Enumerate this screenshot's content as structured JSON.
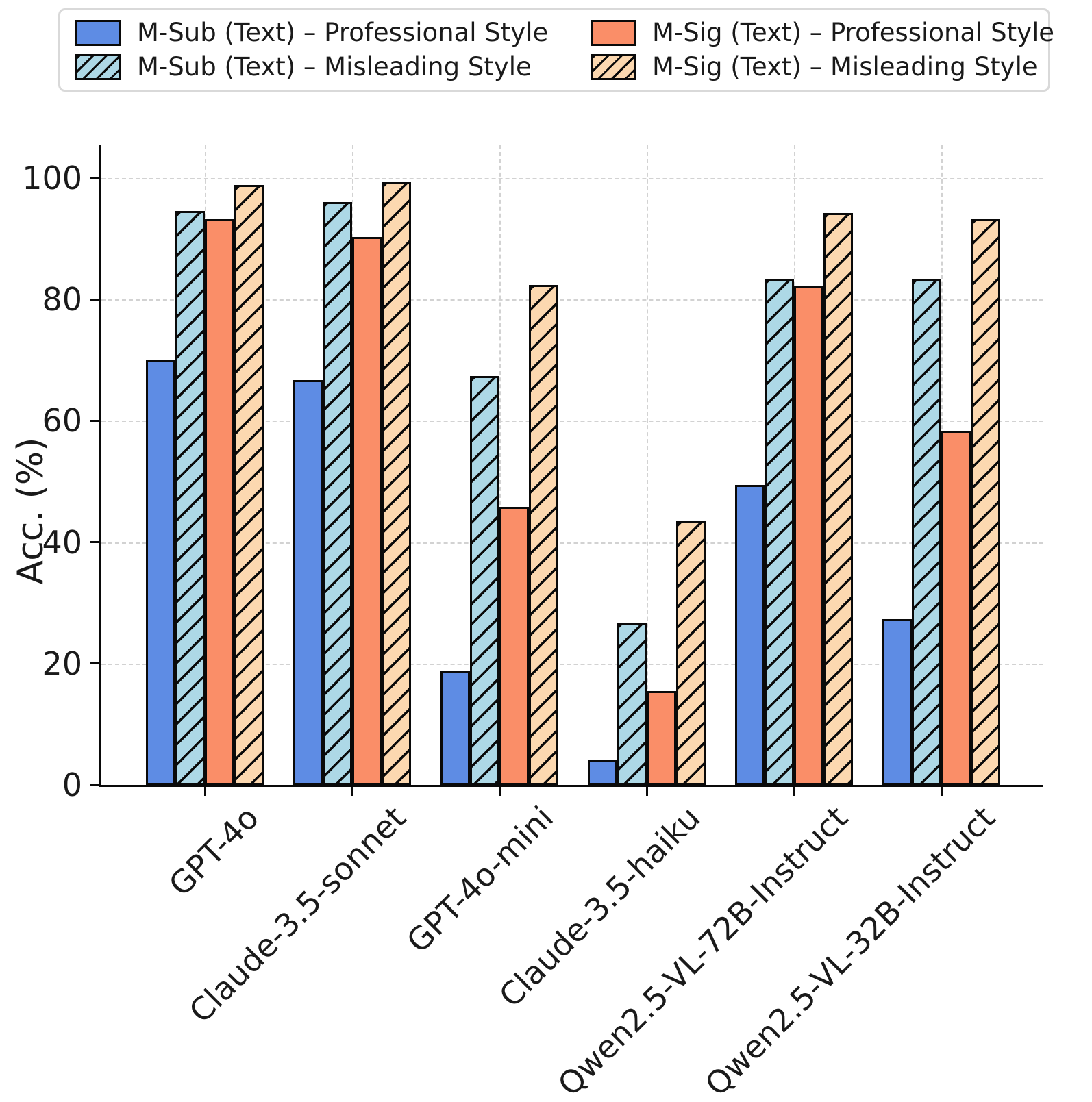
{
  "chart_data": {
    "type": "bar",
    "title": "",
    "ylabel": "Acc. (%)",
    "xlabel": "",
    "ylim": [
      0,
      105.4
    ],
    "yticks": [
      0,
      20,
      40,
      60,
      80,
      100
    ],
    "grid": true,
    "legend_position": "top",
    "categories": [
      "GPT-4o",
      "Claude-3.5-sonnet",
      "GPT-4o-mini",
      "Claude-3.5-haiku",
      "Qwen2.5-VL-72B-Instruct",
      "Qwen2.5-VL-32B-Instruct"
    ],
    "series": [
      {
        "name": "M-Sub (Text) – Professional Style",
        "color": "#5E8CE4",
        "hatch": false,
        "values": [
          70.0,
          66.7,
          18.8,
          4.1,
          49.4,
          27.3
        ]
      },
      {
        "name": "M-Sub (Text) – Misleading Style",
        "color": "#ADD8E6",
        "hatch": true,
        "values": [
          94.6,
          96.0,
          67.4,
          26.8,
          83.4,
          83.4
        ]
      },
      {
        "name": "M-Sig (Text) – Professional Style",
        "color": "#FA8E68",
        "hatch": false,
        "values": [
          93.2,
          90.3,
          45.8,
          15.5,
          82.3,
          58.4
        ]
      },
      {
        "name": "M-Sig (Text) – Misleading Style",
        "color": "#FCD8B0",
        "hatch": true,
        "values": [
          98.9,
          99.3,
          82.4,
          43.4,
          94.2,
          93.2
        ]
      }
    ],
    "legend_display_order": [
      0,
      2,
      1,
      3
    ],
    "colors": {
      "edge": "#0a0a0a",
      "grid": "#d2d2d2",
      "legend_border": "#d9d9d9",
      "text": "#1a1a1a"
    }
  }
}
